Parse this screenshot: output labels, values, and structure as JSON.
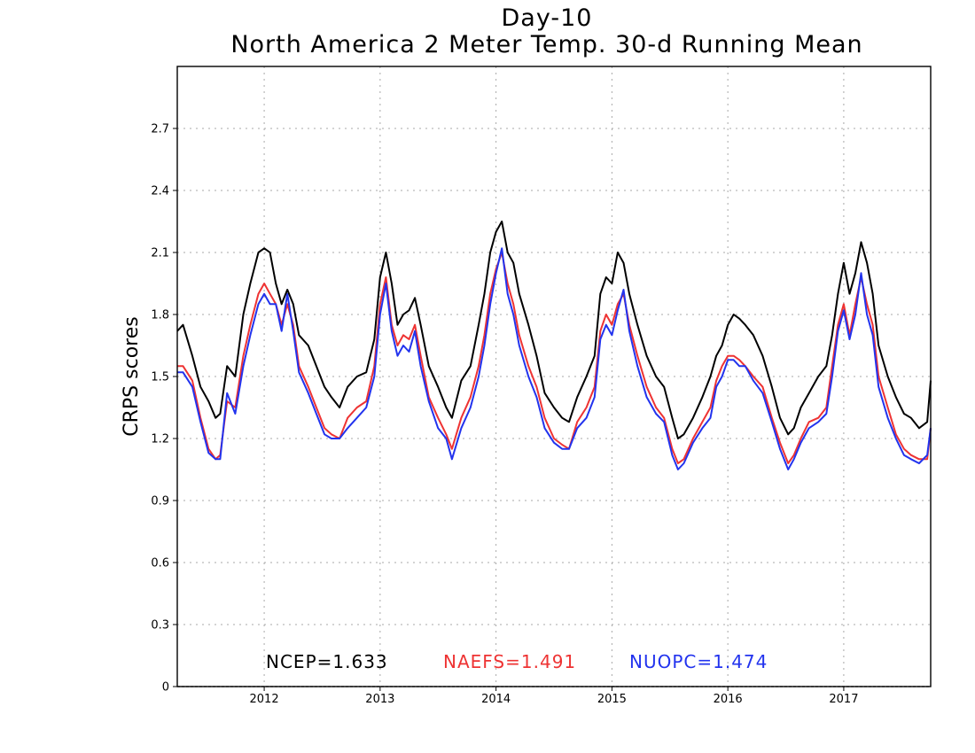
{
  "chart_data": {
    "type": "line",
    "title": "Day-10",
    "subtitle": "North America 2 Meter Temp. 30-d Running Mean",
    "xlabel": "",
    "ylabel": "CRPS scores",
    "xlim": [
      2011.25,
      2017.75
    ],
    "ylim": [
      0,
      3.0
    ],
    "yticks": [
      0,
      0.3,
      0.6,
      0.9,
      1.2,
      1.5,
      1.8,
      2.1,
      2.4,
      2.7
    ],
    "ytick_labels": [
      "0",
      "0.3",
      "0.6",
      "0.9",
      "1.2",
      "1.5",
      "1.8",
      "2.1",
      "2.4",
      "2.7"
    ],
    "xticks": [
      2012.0,
      2013.0,
      2014.0,
      2015.0,
      2016.0,
      2017.0
    ],
    "xtick_labels": [
      "2012",
      "2013",
      "2014",
      "2015",
      "2016",
      "2017"
    ],
    "grid": true,
    "annotations": [
      {
        "text": "NCEP=1.633",
        "color": "#000000"
      },
      {
        "text": "NAEFS=1.491",
        "color": "#ee3333"
      },
      {
        "text": "NUOPC=1.474",
        "color": "#2233ee"
      }
    ],
    "series": [
      {
        "name": "NCEP",
        "color": "#000000",
        "x": [
          2011.25,
          2011.3,
          2011.38,
          2011.45,
          2011.52,
          2011.58,
          2011.62,
          2011.68,
          2011.75,
          2011.82,
          2011.88,
          2011.95,
          2012.0,
          2012.05,
          2012.1,
          2012.15,
          2012.2,
          2012.25,
          2012.3,
          2012.38,
          2012.45,
          2012.52,
          2012.58,
          2012.65,
          2012.72,
          2012.8,
          2012.88,
          2012.95,
          2013.0,
          2013.05,
          2013.1,
          2013.15,
          2013.2,
          2013.25,
          2013.3,
          2013.35,
          2013.42,
          2013.5,
          2013.57,
          2013.62,
          2013.7,
          2013.78,
          2013.85,
          2013.9,
          2013.95,
          2014.0,
          2014.05,
          2014.1,
          2014.15,
          2014.2,
          2014.28,
          2014.35,
          2014.42,
          2014.5,
          2014.57,
          2014.63,
          2014.7,
          2014.78,
          2014.85,
          2014.9,
          2014.95,
          2015.0,
          2015.05,
          2015.1,
          2015.15,
          2015.22,
          2015.3,
          2015.38,
          2015.45,
          2015.52,
          2015.57,
          2015.62,
          2015.7,
          2015.78,
          2015.85,
          2015.9,
          2015.95,
          2016.0,
          2016.05,
          2016.1,
          2016.15,
          2016.22,
          2016.3,
          2016.38,
          2016.45,
          2016.52,
          2016.57,
          2016.63,
          2016.7,
          2016.78,
          2016.85,
          2016.9,
          2016.95,
          2017.0,
          2017.05,
          2017.1,
          2017.15,
          2017.2,
          2017.25,
          2017.3,
          2017.38,
          2017.45,
          2017.52,
          2017.58,
          2017.65,
          2017.72,
          2017.75
        ],
        "values": [
          1.72,
          1.75,
          1.6,
          1.45,
          1.38,
          1.3,
          1.32,
          1.55,
          1.5,
          1.8,
          1.95,
          2.1,
          2.12,
          2.1,
          1.95,
          1.85,
          1.92,
          1.85,
          1.7,
          1.65,
          1.55,
          1.45,
          1.4,
          1.35,
          1.45,
          1.5,
          1.52,
          1.68,
          1.98,
          2.1,
          1.95,
          1.75,
          1.8,
          1.82,
          1.88,
          1.75,
          1.55,
          1.45,
          1.35,
          1.3,
          1.48,
          1.55,
          1.75,
          1.9,
          2.1,
          2.2,
          2.25,
          2.1,
          2.05,
          1.9,
          1.75,
          1.6,
          1.42,
          1.35,
          1.3,
          1.28,
          1.4,
          1.5,
          1.6,
          1.9,
          1.98,
          1.95,
          2.1,
          2.05,
          1.9,
          1.75,
          1.6,
          1.5,
          1.45,
          1.3,
          1.2,
          1.22,
          1.3,
          1.4,
          1.5,
          1.6,
          1.65,
          1.75,
          1.8,
          1.78,
          1.75,
          1.7,
          1.6,
          1.45,
          1.3,
          1.22,
          1.25,
          1.35,
          1.42,
          1.5,
          1.55,
          1.7,
          1.9,
          2.05,
          1.9,
          2.0,
          2.15,
          2.05,
          1.9,
          1.65,
          1.5,
          1.4,
          1.32,
          1.3,
          1.25,
          1.28,
          1.48
        ]
      },
      {
        "name": "NAEFS",
        "color": "#ee3333",
        "x": [
          2011.25,
          2011.3,
          2011.38,
          2011.45,
          2011.52,
          2011.58,
          2011.62,
          2011.68,
          2011.75,
          2011.82,
          2011.88,
          2011.95,
          2012.0,
          2012.05,
          2012.1,
          2012.15,
          2012.2,
          2012.25,
          2012.3,
          2012.38,
          2012.45,
          2012.52,
          2012.58,
          2012.65,
          2012.72,
          2012.8,
          2012.88,
          2012.95,
          2013.0,
          2013.05,
          2013.1,
          2013.15,
          2013.2,
          2013.25,
          2013.3,
          2013.35,
          2013.42,
          2013.5,
          2013.57,
          2013.62,
          2013.7,
          2013.78,
          2013.85,
          2013.9,
          2013.95,
          2014.0,
          2014.05,
          2014.1,
          2014.15,
          2014.2,
          2014.28,
          2014.35,
          2014.42,
          2014.5,
          2014.57,
          2014.63,
          2014.7,
          2014.78,
          2014.85,
          2014.9,
          2014.95,
          2015.0,
          2015.05,
          2015.1,
          2015.15,
          2015.22,
          2015.3,
          2015.38,
          2015.45,
          2015.52,
          2015.57,
          2015.62,
          2015.7,
          2015.78,
          2015.85,
          2015.9,
          2015.95,
          2016.0,
          2016.05,
          2016.1,
          2016.15,
          2016.22,
          2016.3,
          2016.38,
          2016.45,
          2016.52,
          2016.57,
          2016.63,
          2016.7,
          2016.78,
          2016.85,
          2016.9,
          2016.95,
          2017.0,
          2017.05,
          2017.1,
          2017.15,
          2017.2,
          2017.25,
          2017.3,
          2017.38,
          2017.45,
          2017.52,
          2017.58,
          2017.65,
          2017.72,
          2017.75
        ],
        "values": [
          1.55,
          1.55,
          1.48,
          1.3,
          1.15,
          1.1,
          1.12,
          1.38,
          1.35,
          1.6,
          1.75,
          1.9,
          1.95,
          1.9,
          1.85,
          1.75,
          1.85,
          1.75,
          1.55,
          1.45,
          1.35,
          1.25,
          1.22,
          1.2,
          1.3,
          1.35,
          1.38,
          1.55,
          1.85,
          1.98,
          1.75,
          1.65,
          1.7,
          1.68,
          1.75,
          1.6,
          1.4,
          1.3,
          1.22,
          1.15,
          1.3,
          1.4,
          1.55,
          1.7,
          1.9,
          2.02,
          2.1,
          1.95,
          1.85,
          1.7,
          1.55,
          1.45,
          1.3,
          1.2,
          1.17,
          1.15,
          1.28,
          1.35,
          1.45,
          1.72,
          1.8,
          1.75,
          1.85,
          1.9,
          1.75,
          1.6,
          1.45,
          1.35,
          1.3,
          1.15,
          1.08,
          1.1,
          1.2,
          1.28,
          1.35,
          1.48,
          1.55,
          1.6,
          1.6,
          1.58,
          1.55,
          1.5,
          1.45,
          1.3,
          1.18,
          1.08,
          1.12,
          1.2,
          1.28,
          1.3,
          1.35,
          1.55,
          1.75,
          1.85,
          1.7,
          1.85,
          1.98,
          1.85,
          1.75,
          1.5,
          1.35,
          1.22,
          1.15,
          1.12,
          1.1,
          1.1,
          1.25
        ]
      },
      {
        "name": "NUOPC",
        "color": "#2233ee",
        "x": [
          2011.25,
          2011.3,
          2011.38,
          2011.45,
          2011.52,
          2011.58,
          2011.62,
          2011.68,
          2011.75,
          2011.82,
          2011.88,
          2011.95,
          2012.0,
          2012.05,
          2012.1,
          2012.15,
          2012.2,
          2012.25,
          2012.3,
          2012.38,
          2012.45,
          2012.52,
          2012.58,
          2012.65,
          2012.72,
          2012.8,
          2012.88,
          2012.95,
          2013.0,
          2013.05,
          2013.1,
          2013.15,
          2013.2,
          2013.25,
          2013.3,
          2013.35,
          2013.42,
          2013.5,
          2013.57,
          2013.62,
          2013.7,
          2013.78,
          2013.85,
          2013.9,
          2013.95,
          2014.0,
          2014.05,
          2014.1,
          2014.15,
          2014.2,
          2014.28,
          2014.35,
          2014.42,
          2014.5,
          2014.57,
          2014.63,
          2014.7,
          2014.78,
          2014.85,
          2014.9,
          2014.95,
          2015.0,
          2015.05,
          2015.1,
          2015.15,
          2015.22,
          2015.3,
          2015.38,
          2015.45,
          2015.52,
          2015.57,
          2015.62,
          2015.7,
          2015.78,
          2015.85,
          2015.9,
          2015.95,
          2016.0,
          2016.05,
          2016.1,
          2016.15,
          2016.22,
          2016.3,
          2016.38,
          2016.45,
          2016.52,
          2016.57,
          2016.63,
          2016.7,
          2016.78,
          2016.85,
          2016.9,
          2016.95,
          2017.0,
          2017.05,
          2017.1,
          2017.15,
          2017.2,
          2017.25,
          2017.3,
          2017.38,
          2017.45,
          2017.52,
          2017.58,
          2017.65,
          2017.72,
          2017.75
        ],
        "values": [
          1.52,
          1.52,
          1.45,
          1.28,
          1.13,
          1.1,
          1.1,
          1.42,
          1.32,
          1.55,
          1.7,
          1.85,
          1.9,
          1.85,
          1.85,
          1.72,
          1.9,
          1.72,
          1.52,
          1.42,
          1.32,
          1.22,
          1.2,
          1.2,
          1.25,
          1.3,
          1.35,
          1.5,
          1.8,
          1.95,
          1.72,
          1.6,
          1.65,
          1.62,
          1.72,
          1.55,
          1.38,
          1.25,
          1.2,
          1.1,
          1.25,
          1.35,
          1.5,
          1.65,
          1.85,
          2.0,
          2.12,
          1.9,
          1.8,
          1.65,
          1.5,
          1.4,
          1.25,
          1.18,
          1.15,
          1.15,
          1.25,
          1.3,
          1.4,
          1.68,
          1.75,
          1.7,
          1.82,
          1.92,
          1.72,
          1.55,
          1.4,
          1.32,
          1.28,
          1.12,
          1.05,
          1.08,
          1.18,
          1.25,
          1.3,
          1.45,
          1.5,
          1.58,
          1.58,
          1.55,
          1.55,
          1.48,
          1.42,
          1.28,
          1.15,
          1.05,
          1.1,
          1.18,
          1.25,
          1.28,
          1.32,
          1.5,
          1.72,
          1.82,
          1.68,
          1.8,
          2.0,
          1.8,
          1.7,
          1.45,
          1.3,
          1.2,
          1.12,
          1.1,
          1.08,
          1.12,
          1.25
        ]
      }
    ]
  }
}
